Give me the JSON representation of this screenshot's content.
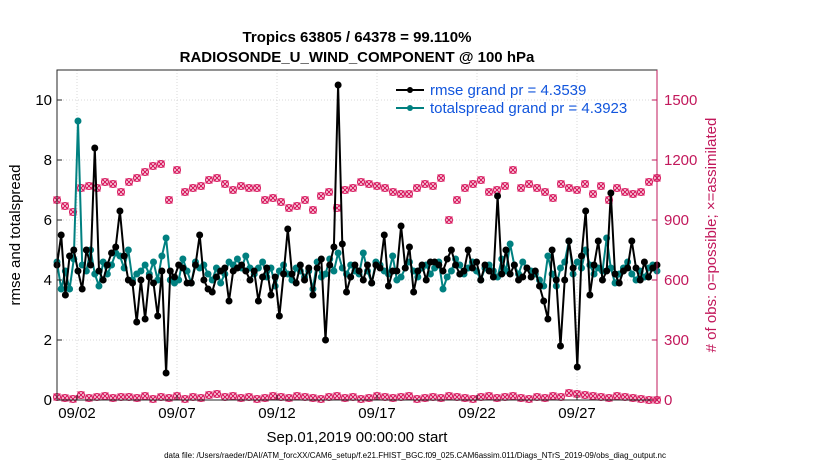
{
  "chart_data": {
    "type": "line",
    "title": [
      "Tropics 63805 / 64378 = 99.110%",
      "RADIOSONDE_U_WIND_COMPONENT @ 100 hPa"
    ],
    "xlabel": "Sep.01,2019 00:00:00 start",
    "ylabel_left": "rmse and totalspread",
    "ylabel_right": "# of obs: o=possible; ×=assimilated",
    "footer": "data file: /Users/raeder/DAI/ATM_forcXX/CAM6_setup/f.e21.FHIST_BGC.f09_025.CAM6assim.011/Diags_NTrS_2019-09/obs_diag_output.nc",
    "xlim": [
      1,
      31
    ],
    "ylim_left": [
      0,
      11
    ],
    "ylim_right": [
      0,
      1650
    ],
    "x_ticks": [
      2,
      7,
      12,
      17,
      22,
      27
    ],
    "x_tick_labels": [
      "09/02",
      "09/07",
      "09/12",
      "09/17",
      "09/22",
      "09/27"
    ],
    "y_ticks_left": [
      0,
      2,
      4,
      6,
      8,
      10
    ],
    "y_tick_labels_left": [
      "0",
      "2",
      "4",
      "6",
      "8",
      "10"
    ],
    "y_ticks_right": [
      0,
      300,
      600,
      900,
      1200,
      1500
    ],
    "y_tick_labels_right": [
      "0",
      "300",
      "600",
      "900",
      "1200",
      "1500"
    ],
    "legend": [
      {
        "label": "rmse grand pr = 4.3539",
        "color": "#000000"
      },
      {
        "label": "totalspread grand pr = 4.3923",
        "color": "#008080"
      }
    ],
    "colors": {
      "rmse": "#000000",
      "spread": "#008080",
      "obs": "#d81b60",
      "right_axis": "#c2185b",
      "legend_text": "#1155dd"
    },
    "series": [
      {
        "name": "rmse",
        "values": [
          4.5,
          5.5,
          3.5,
          4.8,
          5.0,
          4.3,
          3.7,
          5.0,
          4.5,
          8.4,
          4.3,
          4.0,
          4.5,
          4.9,
          5.1,
          6.3,
          4.8,
          4.0,
          3.9,
          2.6,
          4.0,
          2.7,
          4.1,
          3.9,
          2.8,
          4.3,
          0.9,
          4.3,
          4.1,
          4.5,
          4.4,
          3.9,
          3.9,
          4.5,
          5.5,
          4.0,
          3.7,
          3.6,
          4.1,
          4.3,
          4.4,
          3.3,
          4.3,
          4.4,
          4.5,
          4.3,
          4.0,
          4.3,
          3.3,
          4.1,
          4.4,
          3.5,
          4.1,
          2.8,
          4.2,
          5.7,
          4.2,
          3.9,
          4.5,
          4.0,
          4.4,
          3.5,
          4.4,
          4.7,
          2.0,
          4.5,
          5.1,
          10.5,
          5.2,
          3.6,
          4.1,
          4.5,
          4.3,
          4.0,
          4.5,
          3.9,
          4.5,
          4.4,
          5.5,
          3.8,
          4.3,
          4.3,
          5.8,
          4.4,
          5.1,
          3.6,
          4.3,
          4.5,
          4.0,
          4.6,
          4.6,
          4.5,
          4.3,
          4.7,
          5.0,
          4.5,
          4.2,
          4.3,
          5.0,
          4.4,
          4.6,
          4.0,
          4.5,
          4.3,
          4.1,
          6.8,
          4.2,
          5.0,
          4.2,
          4.5,
          4.0,
          4.1,
          4.4,
          4.1,
          4.3,
          3.8,
          3.3,
          2.7,
          5.0,
          4.0,
          1.8,
          4.0,
          5.3,
          4.4,
          1.1,
          4.8,
          6.3,
          3.5,
          4.5,
          5.3,
          4.0,
          4.3,
          6.9,
          4.2,
          3.9,
          4.3,
          4.4,
          5.3,
          4.4,
          4.0,
          4.6,
          4.1,
          4.4,
          4.5
        ]
      },
      {
        "name": "totalspread",
        "values": [
          4.6,
          3.7,
          4.3,
          3.7,
          4.7,
          9.3,
          4.5,
          4.3,
          5.0,
          4.2,
          3.8,
          4.6,
          4.2,
          4.5,
          4.9,
          4.8,
          4.4,
          5.0,
          4.0,
          4.2,
          4.3,
          4.5,
          4.2,
          4.6,
          4.0,
          4.8,
          5.4,
          4.0,
          3.9,
          4.0,
          4.7,
          4.3,
          3.9,
          4.6,
          4.4,
          4.5,
          4.2,
          4.0,
          4.4,
          3.9,
          4.2,
          4.6,
          4.5,
          4.7,
          4.4,
          4.8,
          4.4,
          4.2,
          4.4,
          4.6,
          4.1,
          4.4,
          3.8,
          4.3,
          4.5,
          4.2,
          4.0,
          4.4,
          4.3,
          4.1,
          4.3,
          3.7,
          4.6,
          4.1,
          4.2,
          4.7,
          4.3,
          4.9,
          4.4,
          4.2,
          4.5,
          4.3,
          4.2,
          4.9,
          4.3,
          3.9,
          4.6,
          4.5,
          4.3,
          4.2,
          4.8,
          4.0,
          4.1,
          4.4,
          4.6,
          4.3,
          4.1,
          4.4,
          4.5,
          4.2,
          4.4,
          4.6,
          3.7,
          4.1,
          4.3,
          4.7,
          4.5,
          4.2,
          4.4,
          4.6,
          4.3,
          4.0,
          4.4,
          4.5,
          4.3,
          4.1,
          4.7,
          4.3,
          5.2,
          4.5,
          4.2,
          4.6,
          4.4,
          4.3,
          4.2,
          4.0,
          3.8,
          4.8,
          4.2,
          3.8,
          4.4,
          4.6,
          5.3,
          4.2,
          4.6,
          4.4,
          5.0,
          4.5,
          4.2,
          4.4,
          4.3,
          5.4,
          4.4,
          3.9,
          4.2,
          4.4,
          4.6,
          4.2,
          4.0,
          4.3,
          4.1,
          4.4,
          4.5,
          4.3
        ]
      },
      {
        "name": "obs_possible",
        "x": [
          1,
          1.4,
          1.8,
          2.2,
          2.6,
          3.0,
          3.4,
          3.8,
          4.2,
          4.6,
          5.0,
          5.4,
          5.8,
          6.2,
          6.6,
          7.0,
          7.4,
          7.8,
          8.2,
          8.6,
          9.0,
          9.4,
          9.8,
          10.2,
          10.6,
          11.0,
          11.4,
          11.8,
          12.2,
          12.6,
          13.0,
          13.4,
          13.8,
          14.2,
          14.6,
          15.0,
          15.4,
          15.8,
          16.2,
          16.6,
          17.0,
          17.4,
          17.8,
          18.2,
          18.6,
          19.0,
          19.4,
          19.8,
          20.2,
          20.6,
          21.0,
          21.4,
          21.8,
          22.2,
          22.6,
          23.0,
          23.4,
          23.8,
          24.2,
          24.6,
          25.0,
          25.4,
          25.8,
          26.2,
          26.6,
          27.0,
          27.4,
          27.8,
          28.2,
          28.6,
          29.0,
          29.4,
          29.8,
          30.2,
          30.6,
          31.0
        ],
        "values": [
          1000,
          970,
          940,
          1060,
          1070,
          1060,
          1090,
          1080,
          1040,
          1090,
          1110,
          1140,
          1170,
          1180,
          1000,
          1150,
          1040,
          1060,
          1070,
          1100,
          1110,
          1080,
          1050,
          1070,
          1060,
          1060,
          1000,
          1010,
          990,
          960,
          970,
          1000,
          950,
          1020,
          1040,
          960,
          1050,
          1060,
          1090,
          1080,
          1070,
          1060,
          1040,
          1030,
          1030,
          1060,
          1080,
          1070,
          1110,
          900,
          1000,
          1060,
          1080,
          1100,
          1040,
          1050,
          1070,
          1150,
          1060,
          1080,
          1060,
          1040,
          1010,
          1080,
          1060,
          1050,
          1080,
          1030,
          1070,
          1000,
          1060,
          1040,
          1030,
          1040,
          1090,
          1110
        ]
      },
      {
        "name": "obs_assimilated",
        "x": [
          1,
          1.4,
          1.8,
          2.2,
          2.6,
          3.0,
          3.4,
          3.8,
          4.2,
          4.6,
          5.0,
          5.4,
          5.8,
          6.2,
          6.6,
          7.0,
          7.4,
          7.8,
          8.2,
          8.6,
          9.0,
          9.4,
          9.8,
          10.2,
          10.6,
          11.0,
          11.4,
          11.8,
          12.2,
          12.6,
          13.0,
          13.4,
          13.8,
          14.2,
          14.6,
          15.0,
          15.4,
          15.8,
          16.2,
          16.6,
          17.0,
          17.4,
          17.8,
          18.2,
          18.6,
          19.0,
          19.4,
          19.8,
          20.2,
          20.6,
          21.0,
          21.4,
          21.8,
          22.2,
          22.6,
          23.0,
          23.4,
          23.8,
          24.2,
          24.6,
          25.0,
          25.4,
          25.8,
          26.2,
          26.6,
          27.0,
          27.4,
          27.8,
          28.2,
          28.6,
          29.0,
          29.4,
          29.8,
          30.2,
          30.6,
          31.0
        ],
        "values": [
          15,
          10,
          5,
          25,
          10,
          15,
          20,
          10,
          15,
          15,
          10,
          20,
          5,
          15,
          10,
          20,
          5,
          15,
          10,
          25,
          30,
          15,
          20,
          10,
          15,
          5,
          10,
          20,
          15,
          10,
          20,
          15,
          10,
          5,
          15,
          20,
          10,
          15,
          5,
          10,
          20,
          15,
          10,
          15,
          20,
          5,
          10,
          15,
          10,
          20,
          15,
          10,
          5,
          15,
          20,
          10,
          15,
          20,
          10,
          5,
          15,
          10,
          20,
          15,
          35,
          30,
          25,
          20,
          15,
          10,
          20,
          15,
          10,
          5,
          0,
          0
        ]
      }
    ]
  }
}
